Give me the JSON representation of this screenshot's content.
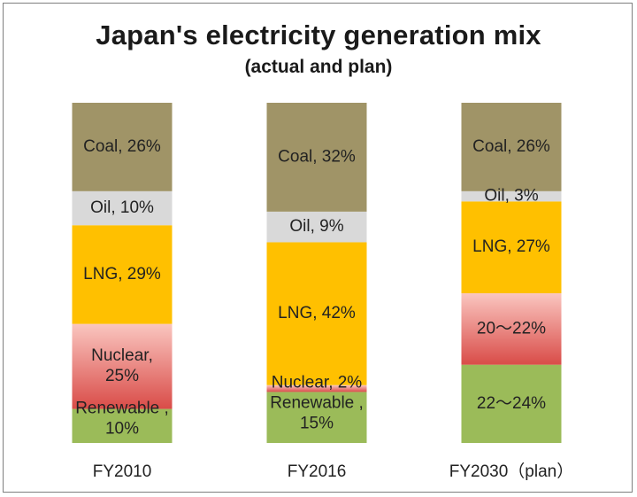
{
  "chart_data": {
    "type": "bar",
    "stacked": true,
    "title": "Japan's electricity generation mix",
    "subtitle": "(actual and plan)",
    "categories": [
      "FY2010",
      "FY2016",
      "FY2030（plan）"
    ],
    "ylim": [
      0,
      100
    ],
    "grid": false,
    "series": [
      {
        "name": "Renewable",
        "color": "#9bbb59",
        "values": [
          10,
          15,
          23
        ]
      },
      {
        "name": "Nuclear",
        "color": "#e46c6c",
        "values": [
          25,
          2,
          21
        ]
      },
      {
        "name": "LNG",
        "color": "#ffc000",
        "values": [
          29,
          42,
          27
        ]
      },
      {
        "name": "Oil",
        "color": "#d9d9d9",
        "values": [
          10,
          9,
          3
        ]
      },
      {
        "name": "Coal",
        "color": "#a09467",
        "values": [
          26,
          32,
          26
        ]
      }
    ],
    "labels": [
      [
        "Renewable ,\n10%",
        "Nuclear,\n25%",
        "LNG, 29%",
        "Oil, 10%",
        "Coal, 26%"
      ],
      [
        "Renewable ,\n15%",
        "Nuclear, 2%",
        "LNG, 42%",
        "Oil, 9%",
        "Coal, 32%"
      ],
      [
        "22～24%",
        "20～22%",
        "LNG, 27%",
        "Oil, 3%",
        "Coal, 26%"
      ]
    ]
  }
}
